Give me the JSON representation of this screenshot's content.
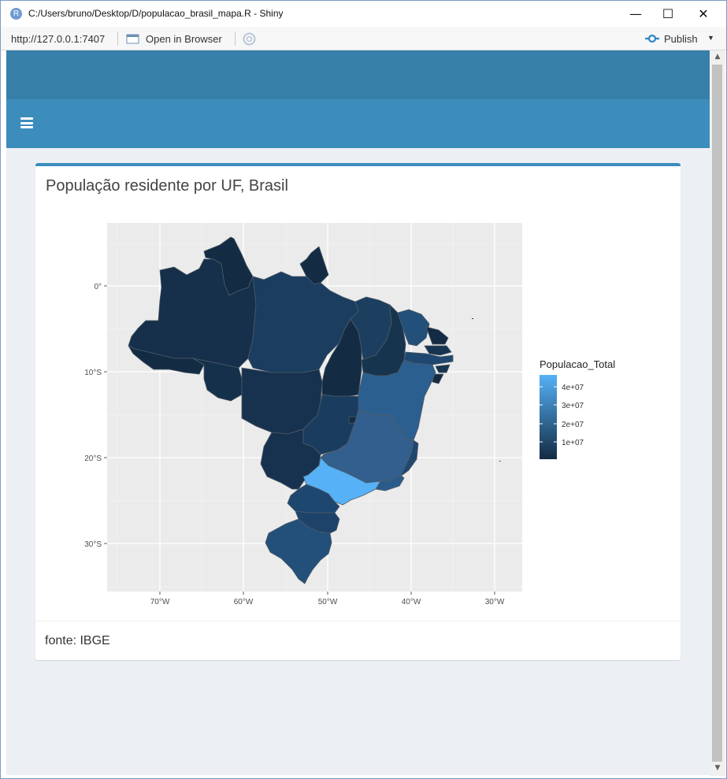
{
  "window": {
    "title": "C:/Users/bruno/Desktop/D/populacao_brasil_mapa.R - Shiny",
    "app_icon_letter": "R",
    "minimize": "—",
    "maximize": "☐",
    "close": "✕"
  },
  "toolbar": {
    "url": "http://127.0.0.1:7407",
    "open_browser_label": "Open in Browser",
    "publish_label": "Publish"
  },
  "box": {
    "title": "População residente por UF, Brasil",
    "footer": "fonte: IBGE"
  },
  "chart_data": {
    "type": "choropleth-map",
    "region": "Brazil states (UF)",
    "x_ticks": [
      "70°W",
      "60°W",
      "50°W",
      "40°W",
      "30°W"
    ],
    "y_ticks": [
      "0°",
      "10°S",
      "20°S",
      "30°S"
    ],
    "legend": {
      "title": "Populacao_Total",
      "labels": [
        "1e+07",
        "2e+07",
        "3e+07",
        "4e+07"
      ],
      "color_low": "#132b43",
      "color_high": "#56b1f7"
    },
    "notable": "São Paulo is the highest value (lightest blue)"
  },
  "colors": {
    "header_top": "#367fa9",
    "header_bar": "#3c8dbc",
    "map_low": "#132b43",
    "map_high": "#56b1f7"
  }
}
